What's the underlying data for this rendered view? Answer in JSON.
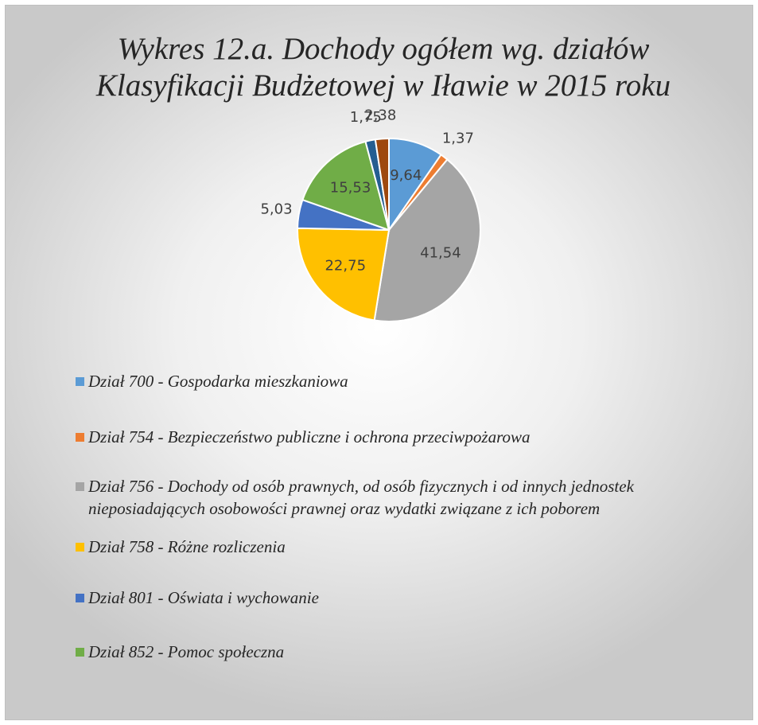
{
  "chart_data": {
    "type": "pie",
    "title": "Wykres 12.a. Dochody ogółem wg. działów Klasyfikacji Budżetowej w Iławie w 2015 roku",
    "categories": [
      "Dział 700 - Gospodarka mieszkaniowa",
      "Dział 754 - Bezpieczeństwo publiczne i ochrona przeciwpożarowa",
      "Dział 756 - Dochody od osób prawnych, od osób fizycznych i od innych jednostek nieposiadających osobowości prawnej oraz wydatki związane z ich poborem",
      "Dział 758 - Różne rozliczenia",
      "Dział 801 - Oświata i wychowanie",
      "Dział 852 - Pomoc społeczna",
      null,
      null
    ],
    "values": [
      9.64,
      1.37,
      41.54,
      22.75,
      5.03,
      15.53,
      1.75,
      2.38
    ],
    "value_labels": [
      "9,64",
      "1,37",
      "41,54",
      "22,75",
      "5,03",
      "15,53",
      "1,75",
      "2,38"
    ],
    "colors": [
      "#5b9bd5",
      "#ed7d31",
      "#a5a5a5",
      "#ffc000",
      "#4472c4",
      "#70ad47",
      "#255e91",
      "#9e480e"
    ]
  }
}
